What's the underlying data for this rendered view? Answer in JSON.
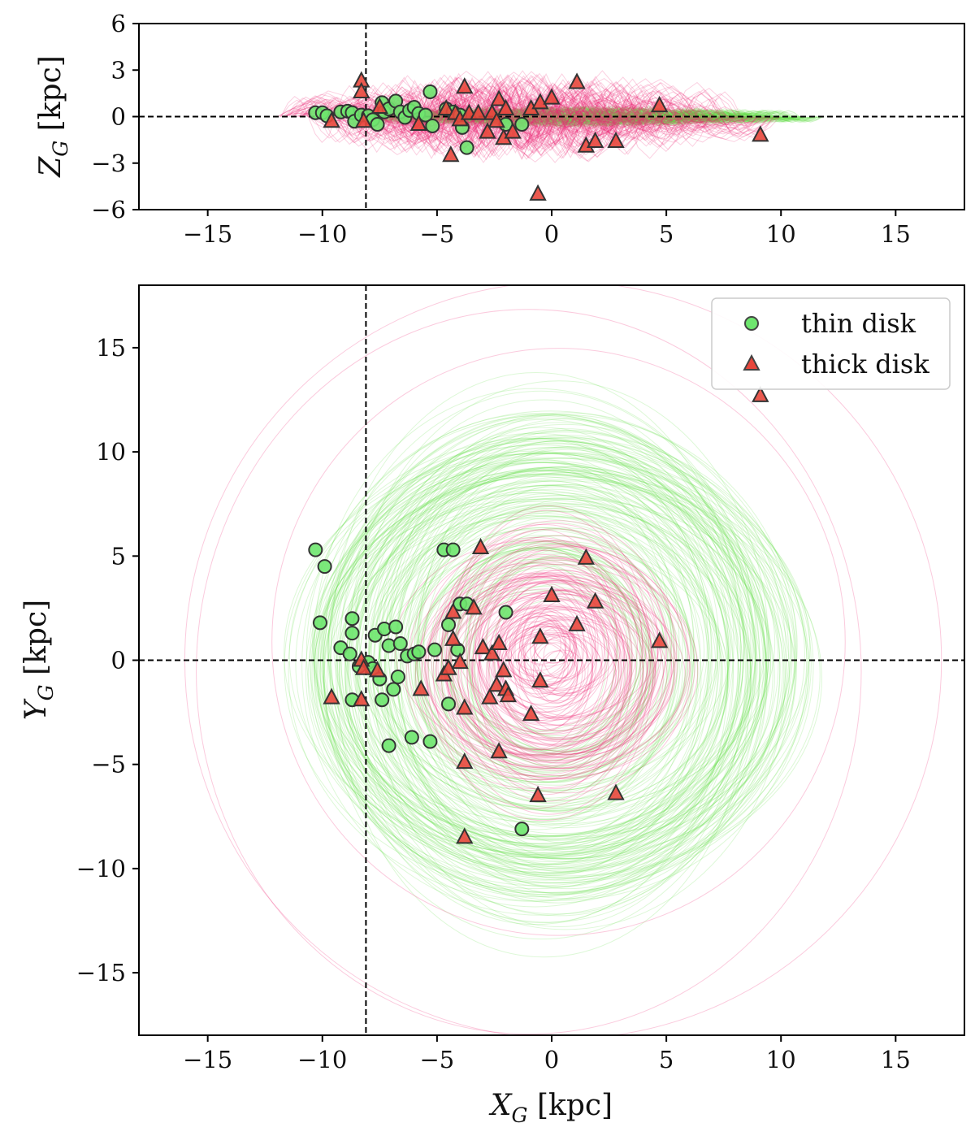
{
  "chart_data": [
    {
      "type": "scatter",
      "name": "top_panel_xz",
      "xlabel": "X_G [kpc]",
      "ylabel_main": "Z",
      "ylabel_sub": "G",
      "ylabel_unit": "[kpc]",
      "xlim": [
        -18,
        18
      ],
      "ylim": [
        -6,
        6
      ],
      "xticks": [
        -15,
        -10,
        -5,
        0,
        5,
        10,
        15
      ],
      "xtick_labels": [
        "−15",
        "−10",
        "−5",
        "0",
        "5",
        "10",
        "15"
      ],
      "yticks": [
        -6,
        -3,
        0,
        3,
        6
      ],
      "ytick_labels": [
        "−6",
        "−3",
        "0",
        "3",
        "6"
      ],
      "reference_lines": {
        "x": -8.1,
        "y": 0
      },
      "series": [
        {
          "name": "thin disk",
          "marker": "circle",
          "color": "#6ee66e",
          "points": [
            [
              -10.3,
              0.25
            ],
            [
              -10.0,
              0.25
            ],
            [
              -9.8,
              0.05
            ],
            [
              -9.2,
              0.3
            ],
            [
              -8.9,
              0.35
            ],
            [
              -8.7,
              0.25
            ],
            [
              -8.6,
              -0.3
            ],
            [
              -8.3,
              0.1
            ],
            [
              -8.0,
              0.05
            ],
            [
              -7.8,
              -0.2
            ],
            [
              -7.6,
              -0.5
            ],
            [
              -7.4,
              0.9
            ],
            [
              -7.3,
              0.3
            ],
            [
              -7.1,
              0.5
            ],
            [
              -6.8,
              1.0
            ],
            [
              -6.6,
              0.3
            ],
            [
              -6.4,
              -0.05
            ],
            [
              -6.2,
              0.4
            ],
            [
              -6.0,
              0.6
            ],
            [
              -5.8,
              0.2
            ],
            [
              -5.5,
              0.1
            ],
            [
              -5.3,
              1.6
            ],
            [
              -5.2,
              -0.6
            ],
            [
              -4.6,
              0.5
            ],
            [
              -4.3,
              0.3
            ],
            [
              -4.0,
              0.1
            ],
            [
              -3.9,
              -0.7
            ],
            [
              -3.7,
              -2.0
            ],
            [
              -2.0,
              -0.5
            ],
            [
              -1.3,
              -0.5
            ]
          ]
        },
        {
          "name": "thick disk",
          "marker": "triangle",
          "color": "#e8473c",
          "points": [
            [
              -8.3,
              2.3
            ],
            [
              -8.3,
              1.6
            ],
            [
              -8.2,
              -0.3
            ],
            [
              -9.6,
              -0.3
            ],
            [
              -7.5,
              0.6
            ],
            [
              -5.8,
              -0.5
            ],
            [
              -4.6,
              0.5
            ],
            [
              -4.4,
              -2.5
            ],
            [
              -4.2,
              0.2
            ],
            [
              -4.0,
              -0.2
            ],
            [
              -3.8,
              1.9
            ],
            [
              -3.6,
              0.2
            ],
            [
              -3.2,
              0.2
            ],
            [
              -2.8,
              -1.0
            ],
            [
              -2.6,
              0.2
            ],
            [
              -2.4,
              -0.3
            ],
            [
              -2.3,
              1.1
            ],
            [
              -2.1,
              -1.4
            ],
            [
              -2.0,
              0.5
            ],
            [
              -1.7,
              -1.0
            ],
            [
              -0.9,
              0.5
            ],
            [
              -0.6,
              -5.0
            ],
            [
              -0.5,
              0.9
            ],
            [
              0.0,
              1.2
            ],
            [
              1.1,
              2.2
            ],
            [
              1.5,
              -1.9
            ],
            [
              1.9,
              -1.6
            ],
            [
              2.8,
              -1.6
            ],
            [
              4.7,
              0.7
            ],
            [
              9.1,
              -1.2
            ]
          ]
        }
      ]
    },
    {
      "type": "scatter",
      "name": "bottom_panel_xy",
      "xlabel_main": "X",
      "xlabel_sub": "G",
      "xlabel_unit": "[kpc]",
      "ylabel_main": "Y",
      "ylabel_sub": "G",
      "ylabel_unit": "[kpc]",
      "xlim": [
        -18,
        18
      ],
      "ylim": [
        -18,
        18
      ],
      "xticks": [
        -15,
        -10,
        -5,
        0,
        5,
        10,
        15
      ],
      "xtick_labels": [
        "−15",
        "−10",
        "−5",
        "0",
        "5",
        "10",
        "15"
      ],
      "yticks": [
        -15,
        -10,
        -5,
        0,
        5,
        10,
        15
      ],
      "ytick_labels": [
        "−15",
        "−10",
        "−5",
        "0",
        "5",
        "10",
        "15"
      ],
      "reference_lines": {
        "x": -8.1,
        "y": 0
      },
      "legend": {
        "placement": "top-right",
        "entries": [
          "thin disk",
          "thick disk"
        ]
      },
      "series": [
        {
          "name": "thin disk",
          "marker": "circle",
          "color": "#6ee66e",
          "points": [
            [
              -10.3,
              5.3
            ],
            [
              -9.9,
              4.5
            ],
            [
              -10.1,
              1.8
            ],
            [
              -9.2,
              0.6
            ],
            [
              -8.8,
              0.3
            ],
            [
              -8.7,
              2.0
            ],
            [
              -8.7,
              1.3
            ],
            [
              -8.7,
              -1.9
            ],
            [
              -8.4,
              -0.3
            ],
            [
              -8.0,
              -0.1
            ],
            [
              -7.8,
              -0.4
            ],
            [
              -7.7,
              1.2
            ],
            [
              -7.5,
              -0.9
            ],
            [
              -7.3,
              1.5
            ],
            [
              -7.1,
              0.7
            ],
            [
              -6.9,
              -1.4
            ],
            [
              -6.8,
              1.6
            ],
            [
              -6.7,
              -0.8
            ],
            [
              -6.6,
              0.8
            ],
            [
              -6.3,
              0.2
            ],
            [
              -6.0,
              0.3
            ],
            [
              -5.8,
              0.4
            ],
            [
              -7.1,
              -4.1
            ],
            [
              -7.4,
              -1.9
            ],
            [
              -6.1,
              -3.7
            ],
            [
              -5.3,
              -3.9
            ],
            [
              -5.1,
              0.5
            ],
            [
              -4.7,
              5.3
            ],
            [
              -4.3,
              5.3
            ],
            [
              -4.0,
              2.7
            ],
            [
              -3.7,
              2.7
            ],
            [
              -4.5,
              1.7
            ],
            [
              -4.1,
              0.5
            ],
            [
              -4.5,
              -2.1
            ],
            [
              -2.0,
              2.3
            ],
            [
              -1.3,
              -8.1
            ]
          ]
        },
        {
          "name": "thick disk",
          "marker": "triangle",
          "color": "#e8473c",
          "points": [
            [
              -9.6,
              -1.8
            ],
            [
              -8.3,
              0.0
            ],
            [
              -8.2,
              -0.4
            ],
            [
              -8.3,
              -1.9
            ],
            [
              -7.6,
              -0.5
            ],
            [
              -5.7,
              -1.4
            ],
            [
              -4.7,
              -0.7
            ],
            [
              -4.5,
              -0.4
            ],
            [
              -4.3,
              2.3
            ],
            [
              -4.3,
              1.0
            ],
            [
              -4.0,
              -0.1
            ],
            [
              -3.8,
              -2.3
            ],
            [
              -3.8,
              -4.9
            ],
            [
              -3.8,
              -8.5
            ],
            [
              -3.4,
              2.5
            ],
            [
              -3.1,
              5.4
            ],
            [
              -3.0,
              0.6
            ],
            [
              -2.7,
              -1.8
            ],
            [
              -2.6,
              0.3
            ],
            [
              -2.4,
              -1.2
            ],
            [
              -2.3,
              0.8
            ],
            [
              -2.3,
              -4.4
            ],
            [
              -2.1,
              -0.5
            ],
            [
              -2.0,
              -1.4
            ],
            [
              -1.9,
              -1.7
            ],
            [
              -0.9,
              -2.6
            ],
            [
              -0.6,
              -6.5
            ],
            [
              -0.5,
              1.1
            ],
            [
              -0.5,
              -1.0
            ],
            [
              0.0,
              3.1
            ],
            [
              1.1,
              1.7
            ],
            [
              1.5,
              4.9
            ],
            [
              1.9,
              2.8
            ],
            [
              2.8,
              -6.4
            ],
            [
              4.7,
              0.9
            ],
            [
              9.1,
              12.7
            ]
          ]
        }
      ]
    }
  ]
}
